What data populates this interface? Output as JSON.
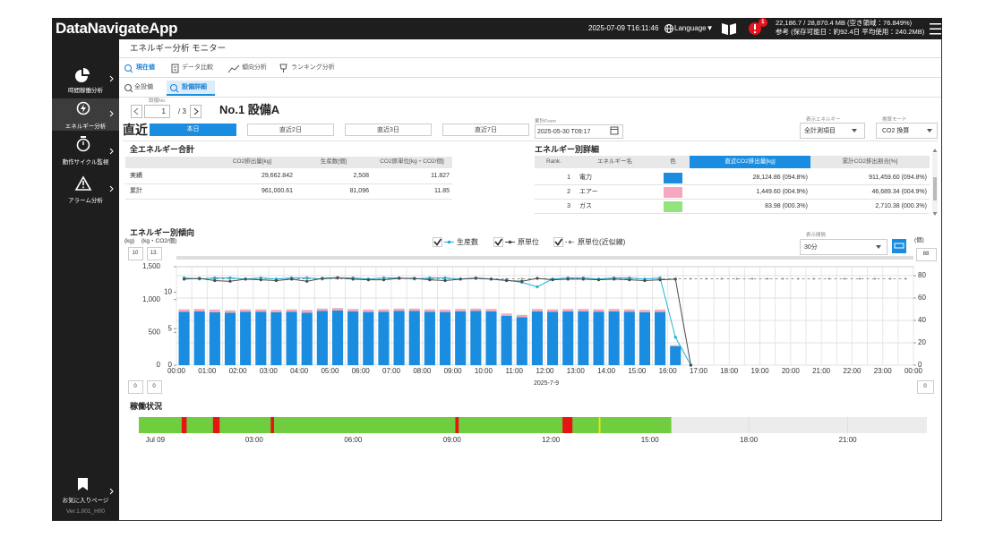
{
  "header": {
    "app_name": "DataNavigateApp",
    "datetime": "2025-07-09 T16:11:46",
    "language": "Language▼",
    "alert_count": "1",
    "storage": "22,186.7 / 28,870.4 MB (空き領域：76.849%)",
    "storage_note": "参考 (保存可能日：約92.4日 平均使用：240.2MB)"
  },
  "sidebar": {
    "items": [
      "時間稼働分析",
      "エネルギー分析",
      "動作サイクル監視",
      "アラーム分析"
    ],
    "favorites": "お気に入りページ",
    "version": "Ver.1.001_H00"
  },
  "page_title": "エネルギー分析 モニター",
  "tabs": [
    "現在値",
    "データ比較",
    "傾向分析",
    "ランキング分析"
  ],
  "subtabs": [
    "全設備",
    "設備詳細"
  ],
  "device": {
    "no_label": "設備No.",
    "no": "1",
    "total": "/ 3",
    "name": "No.1 設備A"
  },
  "period": {
    "label": "直近",
    "buttons": [
      "本日",
      "直近2日",
      "直近3日",
      "直近7日"
    ],
    "from_label": "累計From",
    "from": "2025-05-30 T09:17",
    "energy_label": "表示エネルギー",
    "energy": "全計測項目",
    "mode_label": "換算モード",
    "mode": "CO2 換算"
  },
  "totals": {
    "title": "全エネルギー合計",
    "headers": [
      "CO2排出量[kg]",
      "生産数[個]",
      "CO2原単位[kg・CO2/個]"
    ],
    "rows": [
      [
        "実績",
        "29,662.842",
        "2,508",
        "11.827"
      ],
      [
        "累計",
        "961,000.61",
        "81,096",
        "11.85"
      ]
    ]
  },
  "energy": {
    "title": "エネルギー別詳細",
    "headers": [
      "Rank.",
      "エネルギー名",
      "色",
      "直近CO2排出量[kg]",
      "累計CO2排出割合[%]"
    ],
    "rows": [
      {
        "rank": "1",
        "name": "電力",
        "color": "#1a8de0",
        "recent": "28,124.86 (094.8%)",
        "total": "911,459.60 (094.8%)"
      },
      {
        "rank": "2",
        "name": "エアー",
        "color": "#f5a7bf",
        "recent": "1,449.60 (004.9%)",
        "total": "46,689.34 (004.9%)"
      },
      {
        "rank": "3",
        "name": "ガス",
        "color": "#93e37f",
        "recent": "83.98 (000.3%)",
        "total": "2,710.38 (000.3%)"
      }
    ]
  },
  "chart_data": [
    {
      "type": "bar",
      "title": "エネルギー別傾向",
      "y_unit": "(kg)",
      "y2_unit": "(kg・CO2/個)",
      "y3_unit": "(個)",
      "interval_label": "表示間隔",
      "interval": "30分",
      "xlabel": "2025-7-9",
      "axis_inputs": {
        "y_max": "10",
        "y2_max": "13.",
        "y3_max": "88",
        "y_min": "0",
        "y2_min": "0",
        "y3_min": "0"
      },
      "grid": true,
      "stacked": true,
      "categories": [
        "00:00",
        null,
        "01:00",
        null,
        "02:00",
        null,
        "03:00",
        null,
        "04:00",
        null,
        "05:00",
        null,
        "06:00",
        null,
        "07:00",
        null,
        "08:00",
        null,
        "09:00",
        null,
        "10:00",
        null,
        "11:00",
        null,
        "12:00",
        null,
        "13:00",
        null,
        "14:00",
        null,
        "15:00",
        null,
        "16:00",
        null,
        "17:00",
        null,
        "18:00",
        null,
        "19:00",
        null,
        "20:00",
        null,
        "21:00",
        null,
        "22:00",
        null,
        "23:00",
        null,
        "00:00"
      ],
      "ylim": [
        0,
        1500
      ],
      "yticks": [
        0,
        500,
        {
          "value": 1000,
          "label": "1,000"
        },
        {
          "value": 1500,
          "label": "1,500"
        }
      ],
      "y2lim": [
        0,
        13.5
      ],
      "y2ticks": [
        0,
        5,
        10
      ],
      "y3lim": [
        0,
        88
      ],
      "y3ticks": [
        0,
        20,
        40,
        60,
        80
      ],
      "series": [
        {
          "type": "bar",
          "color": "#1a8de0",
          "values": [
            815,
            820,
            805,
            800,
            815,
            815,
            805,
            815,
            800,
            825,
            835,
            820,
            810,
            815,
            825,
            825,
            815,
            810,
            820,
            825,
            820,
            750,
            730,
            820,
            815,
            820,
            820,
            815,
            820,
            815,
            805,
            810,
            290,
            null,
            null,
            null,
            null,
            null,
            null,
            null,
            null,
            null,
            null,
            null,
            null,
            null,
            null,
            null,
            null
          ]
        },
        {
          "type": "bar",
          "color": "#f5a7bf",
          "values": [
            35,
            35,
            40,
            35,
            35,
            35,
            35,
            35,
            40,
            35,
            35,
            35,
            35,
            35,
            35,
            35,
            35,
            35,
            35,
            35,
            35,
            35,
            35,
            35,
            35,
            35,
            35,
            35,
            35,
            35,
            35,
            35,
            15,
            null,
            null,
            null,
            null,
            null,
            null,
            null,
            null,
            null,
            null,
            null,
            null,
            null,
            null,
            null,
            null
          ]
        },
        {
          "type": "bar",
          "color": "#93e37f",
          "values": [
            2,
            2,
            2,
            2,
            2,
            2,
            2,
            2,
            2,
            2,
            2,
            2,
            2,
            2,
            2,
            2,
            2,
            2,
            2,
            2,
            2,
            2,
            2,
            2,
            2,
            2,
            2,
            2,
            2,
            2,
            2,
            2,
            1,
            null,
            null,
            null,
            null,
            null,
            null,
            null,
            null,
            null,
            null,
            null,
            null,
            null,
            null,
            null,
            null
          ]
        },
        {
          "type": "line",
          "name": "生産数",
          "axis": "y3",
          "color": "#19b5d8",
          "style": "solid",
          "values": [
            78,
            77,
            78,
            78,
            77,
            78,
            77,
            78,
            78,
            77,
            78,
            78,
            77,
            78,
            78,
            77,
            78,
            78,
            77,
            78,
            77,
            76,
            74,
            70,
            77,
            78,
            78,
            77,
            78,
            78,
            77,
            78,
            25,
            0,
            null,
            null,
            null,
            null,
            null,
            null,
            null,
            null,
            null,
            null,
            null,
            null,
            null,
            null,
            null
          ]
        },
        {
          "type": "line",
          "name": "原単位",
          "axis": "y2",
          "color": "#4a4a4a",
          "style": "solid",
          "values": [
            11.8,
            11.9,
            11.6,
            11.5,
            11.8,
            11.7,
            11.6,
            11.8,
            11.5,
            11.9,
            12.0,
            11.8,
            11.7,
            11.7,
            11.9,
            11.9,
            11.7,
            11.6,
            11.8,
            11.9,
            11.8,
            11.6,
            11.5,
            11.9,
            11.7,
            11.8,
            11.8,
            11.7,
            11.8,
            11.7,
            11.6,
            11.7,
            11.8,
            0,
            null,
            null,
            null,
            null,
            null,
            null,
            null,
            null,
            null,
            null,
            null,
            null,
            null,
            null,
            null
          ]
        },
        {
          "type": "line",
          "name": "原単位(近似線)",
          "axis": "y2",
          "color": "#8a8a8a",
          "style": "dashed",
          "values": [
            11.85,
            11.85,
            11.85,
            11.85,
            11.85,
            11.85,
            11.85,
            11.85,
            11.85,
            11.85,
            11.85,
            11.85,
            11.85,
            11.85,
            11.85,
            11.85,
            11.85,
            11.85,
            11.85,
            11.85,
            11.85,
            11.85,
            11.85,
            11.85,
            11.85,
            11.85,
            11.85,
            11.85,
            11.85,
            11.85,
            11.85,
            11.85,
            11.85,
            11.85,
            11.85,
            11.85,
            11.85,
            11.85,
            11.85,
            11.85,
            11.85,
            11.85,
            11.85,
            11.85,
            11.85,
            11.85,
            11.85,
            11.85,
            null
          ]
        }
      ]
    },
    {
      "type": "timeline",
      "title": "稼働状況",
      "xlim": [
        -0.5,
        23.4
      ],
      "xticks": [
        {
          "value": 0,
          "label": "Jul 09"
        },
        {
          "value": 3,
          "label": "03:00"
        },
        {
          "value": 6,
          "label": "06:00"
        },
        {
          "value": 9,
          "label": "09:00"
        },
        {
          "value": 12,
          "label": "12:00"
        },
        {
          "value": 15,
          "label": "15:00"
        },
        {
          "value": 18,
          "label": "18:00"
        },
        {
          "value": 21,
          "label": "21:00"
        }
      ],
      "segments": [
        {
          "start": -0.5,
          "end": 15.65,
          "color": "#6fcd3f"
        },
        {
          "start": 0.8,
          "end": 0.95,
          "color": "#e81414"
        },
        {
          "start": 1.75,
          "end": 1.95,
          "color": "#e81414"
        },
        {
          "start": 3.5,
          "end": 3.6,
          "color": "#e81414"
        },
        {
          "start": 9.1,
          "end": 9.2,
          "color": "#e81414"
        },
        {
          "start": 12.35,
          "end": 12.65,
          "color": "#e81414"
        },
        {
          "start": 13.45,
          "end": 13.5,
          "color": "#f3e600"
        }
      ]
    }
  ]
}
